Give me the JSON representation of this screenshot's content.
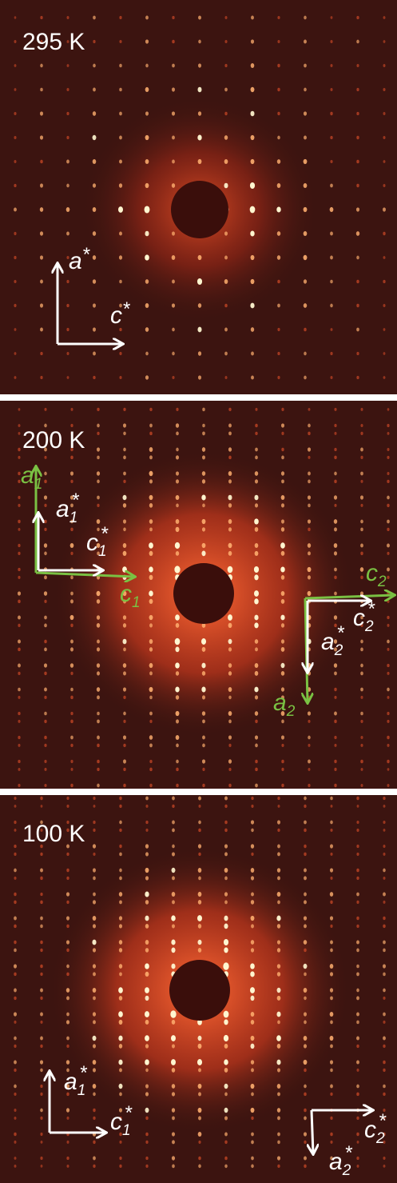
{
  "panels": [
    {
      "temperature": "295 K",
      "labels": [
        {
          "letter": "a",
          "star": "*"
        },
        {
          "letter": "c",
          "star": "*"
        }
      ]
    },
    {
      "temperature": "200 K",
      "labels": [
        {
          "letter": "a",
          "sub": "1"
        },
        {
          "letter": "a",
          "sub": "1",
          "star": "*"
        },
        {
          "letter": "c",
          "sub": "1",
          "star": "*"
        },
        {
          "letter": "c",
          "sub": "1"
        },
        {
          "letter": "c",
          "sub": "2"
        },
        {
          "letter": "c",
          "sub": "2",
          "star": "*"
        },
        {
          "letter": "a",
          "sub": "2",
          "star": "*"
        },
        {
          "letter": "a",
          "sub": "2"
        }
      ]
    },
    {
      "temperature": "100 K",
      "labels": [
        {
          "letter": "a",
          "sub": "1",
          "star": "*"
        },
        {
          "letter": "c",
          "sub": "1",
          "star": "*"
        },
        {
          "letter": "c",
          "sub": "2",
          "star": "*"
        },
        {
          "letter": "a",
          "sub": "2",
          "star": "*"
        }
      ]
    }
  ]
}
